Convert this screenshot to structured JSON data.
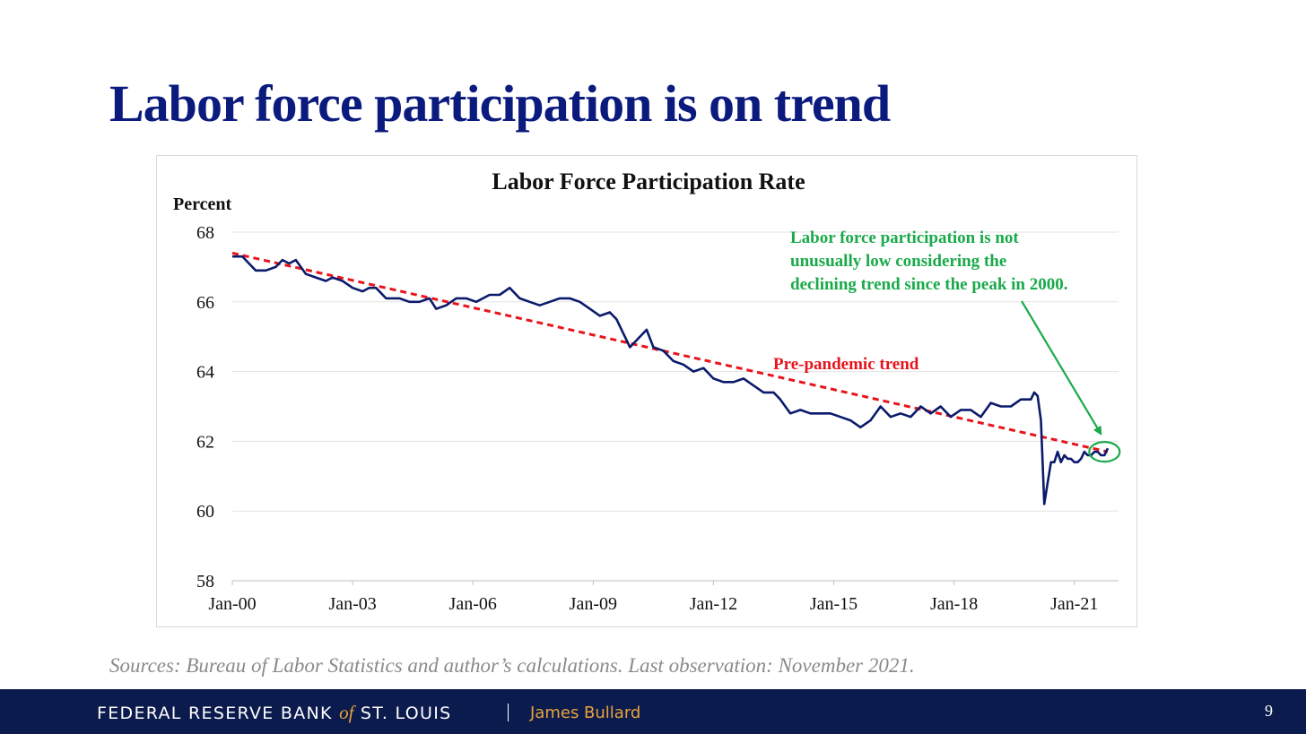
{
  "slide": {
    "title": "Labor force participation is on trend",
    "sources": "Sources: Bureau of Labor Statistics and author’s calculations. Last observation: November 2021.",
    "page_number": "9"
  },
  "footer": {
    "org_part1": "FEDERAL RESERVE BANK",
    "org_of": "of",
    "org_part2": "ST. LOUIS",
    "speaker": "James Bullard"
  },
  "colors": {
    "title": "#0b1a7d",
    "series": "#0b1a6b",
    "trend": "#e8141c",
    "annotation": "#1aaa4a",
    "footer_bg": "#0c1b4d",
    "footer_accent": "#e8a33a"
  },
  "chart_data": {
    "type": "line",
    "title": "Labor Force Participation Rate",
    "ylabel": "Percent",
    "xlabel": "",
    "ylim": [
      58,
      68
    ],
    "yticks": [
      68,
      66,
      64,
      62,
      60,
      58
    ],
    "xticks": [
      "Jan-00",
      "Jan-03",
      "Jan-06",
      "Jan-09",
      "Jan-12",
      "Jan-15",
      "Jan-18",
      "Jan-21"
    ],
    "x_start": "2000-01",
    "x_end": "2021-11",
    "grid": true,
    "series": [
      {
        "name": "",
        "points": [
          [
            "2000-01",
            67.3
          ],
          [
            "2000-04",
            67.3
          ],
          [
            "2000-06",
            67.1
          ],
          [
            "2000-08",
            66.9
          ],
          [
            "2000-11",
            66.9
          ],
          [
            "2001-02",
            67.0
          ],
          [
            "2001-04",
            67.2
          ],
          [
            "2001-06",
            67.1
          ],
          [
            "2001-08",
            67.2
          ],
          [
            "2001-11",
            66.8
          ],
          [
            "2002-02",
            66.7
          ],
          [
            "2002-05",
            66.6
          ],
          [
            "2002-07",
            66.7
          ],
          [
            "2002-10",
            66.6
          ],
          [
            "2003-01",
            66.4
          ],
          [
            "2003-04",
            66.3
          ],
          [
            "2003-06",
            66.4
          ],
          [
            "2003-08",
            66.4
          ],
          [
            "2003-11",
            66.1
          ],
          [
            "2004-03",
            66.1
          ],
          [
            "2004-06",
            66.0
          ],
          [
            "2004-09",
            66.0
          ],
          [
            "2004-12",
            66.1
          ],
          [
            "2005-02",
            65.8
          ],
          [
            "2005-05",
            65.9
          ],
          [
            "2005-08",
            66.1
          ],
          [
            "2005-11",
            66.1
          ],
          [
            "2006-02",
            66.0
          ],
          [
            "2006-06",
            66.2
          ],
          [
            "2006-09",
            66.2
          ],
          [
            "2006-12",
            66.4
          ],
          [
            "2007-03",
            66.1
          ],
          [
            "2007-06",
            66.0
          ],
          [
            "2007-09",
            65.9
          ],
          [
            "2007-12",
            66.0
          ],
          [
            "2008-03",
            66.1
          ],
          [
            "2008-06",
            66.1
          ],
          [
            "2008-09",
            66.0
          ],
          [
            "2008-12",
            65.8
          ],
          [
            "2009-03",
            65.6
          ],
          [
            "2009-06",
            65.7
          ],
          [
            "2009-08",
            65.5
          ],
          [
            "2009-10",
            65.1
          ],
          [
            "2009-12",
            64.7
          ],
          [
            "2010-02",
            64.9
          ],
          [
            "2010-05",
            65.2
          ],
          [
            "2010-07",
            64.7
          ],
          [
            "2010-10",
            64.6
          ],
          [
            "2011-01",
            64.3
          ],
          [
            "2011-04",
            64.2
          ],
          [
            "2011-07",
            64.0
          ],
          [
            "2011-10",
            64.1
          ],
          [
            "2012-01",
            63.8
          ],
          [
            "2012-04",
            63.7
          ],
          [
            "2012-07",
            63.7
          ],
          [
            "2012-10",
            63.8
          ],
          [
            "2013-01",
            63.6
          ],
          [
            "2013-04",
            63.4
          ],
          [
            "2013-07",
            63.4
          ],
          [
            "2013-09",
            63.2
          ],
          [
            "2013-12",
            62.8
          ],
          [
            "2014-03",
            62.9
          ],
          [
            "2014-06",
            62.8
          ],
          [
            "2014-09",
            62.8
          ],
          [
            "2014-12",
            62.8
          ],
          [
            "2015-03",
            62.7
          ],
          [
            "2015-06",
            62.6
          ],
          [
            "2015-09",
            62.4
          ],
          [
            "2015-12",
            62.6
          ],
          [
            "2016-03",
            63.0
          ],
          [
            "2016-06",
            62.7
          ],
          [
            "2016-09",
            62.8
          ],
          [
            "2016-12",
            62.7
          ],
          [
            "2017-03",
            63.0
          ],
          [
            "2017-06",
            62.8
          ],
          [
            "2017-09",
            63.0
          ],
          [
            "2017-12",
            62.7
          ],
          [
            "2018-03",
            62.9
          ],
          [
            "2018-06",
            62.9
          ],
          [
            "2018-09",
            62.7
          ],
          [
            "2018-12",
            63.1
          ],
          [
            "2019-03",
            63.0
          ],
          [
            "2019-06",
            63.0
          ],
          [
            "2019-09",
            63.2
          ],
          [
            "2019-12",
            63.2
          ],
          [
            "2020-01",
            63.4
          ],
          [
            "2020-02",
            63.3
          ],
          [
            "2020-03",
            62.6
          ],
          [
            "2020-04",
            60.2
          ],
          [
            "2020-05",
            60.8
          ],
          [
            "2020-06",
            61.4
          ],
          [
            "2020-07",
            61.4
          ],
          [
            "2020-08",
            61.7
          ],
          [
            "2020-09",
            61.4
          ],
          [
            "2020-10",
            61.6
          ],
          [
            "2020-11",
            61.5
          ],
          [
            "2020-12",
            61.5
          ],
          [
            "2021-01",
            61.4
          ],
          [
            "2021-02",
            61.4
          ],
          [
            "2021-03",
            61.5
          ],
          [
            "2021-04",
            61.7
          ],
          [
            "2021-05",
            61.6
          ],
          [
            "2021-06",
            61.6
          ],
          [
            "2021-07",
            61.7
          ],
          [
            "2021-08",
            61.7
          ],
          [
            "2021-09",
            61.6
          ],
          [
            "2021-10",
            61.6
          ],
          [
            "2021-11",
            61.8
          ]
        ]
      }
    ],
    "trend": {
      "label": "Pre-pandemic trend",
      "start": [
        "2000-01",
        67.4
      ],
      "end": [
        "2021-11",
        61.7
      ]
    },
    "annotation": {
      "lines": [
        "Labor force participation is not",
        "unusually low considering the",
        "declining trend since the peak in 2000."
      ],
      "target": [
        "2021-10",
        61.7
      ]
    }
  }
}
